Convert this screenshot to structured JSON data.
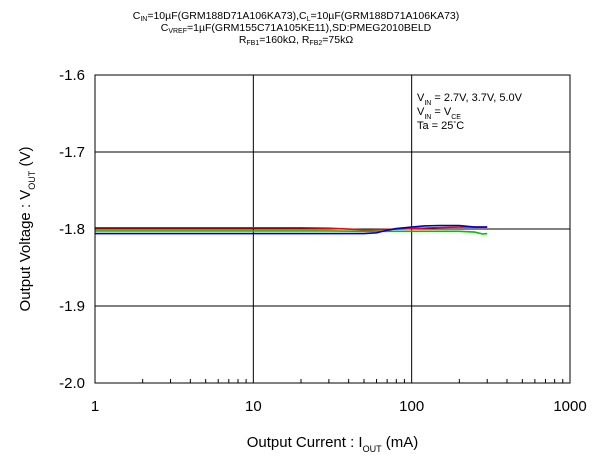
{
  "chart_data": {
    "type": "line",
    "title_lines": [
      [
        [
          "C",
          ""
        ],
        [
          "IN",
          "sub"
        ],
        [
          "=10µF(GRM188D71A106KA73),C",
          ""
        ],
        [
          "L",
          "sub"
        ],
        [
          "=10µF(GRM188D71A106KA73)",
          ""
        ]
      ],
      [
        [
          "C",
          ""
        ],
        [
          "VREF",
          "sub"
        ],
        [
          "=1µF(GRM155C71A105KE11),SD:PMEG2010BELD",
          ""
        ]
      ],
      [
        [
          "R",
          ""
        ],
        [
          "FB1",
          "sub"
        ],
        [
          "=160kΩ,  R",
          ""
        ],
        [
          "FB2",
          "sub"
        ],
        [
          "=75kΩ",
          ""
        ]
      ]
    ],
    "xlabel": [
      [
        "Output Current : I",
        ""
      ],
      [
        "OUT",
        "sub"
      ],
      [
        " (mA)",
        ""
      ]
    ],
    "ylabel": [
      [
        "Output Voltage : V",
        ""
      ],
      [
        "OUT",
        "sub"
      ],
      [
        " (V)",
        ""
      ]
    ],
    "x_scale": "log",
    "xlim": [
      1,
      1000
    ],
    "ylim": [
      -1.6,
      -2.0
    ],
    "x_ticks": [
      1,
      10,
      100,
      1000
    ],
    "x_tick_labels": [
      "1",
      "10",
      "100",
      "1000"
    ],
    "y_ticks": [
      -2.0,
      -1.9,
      -1.8,
      -1.7,
      -1.6
    ],
    "y_tick_labels": [
      "-2.0",
      "-1.9",
      "-1.8",
      "-1.7",
      "-1.6"
    ],
    "grid": true,
    "annotations": [
      [
        [
          "V",
          ""
        ],
        [
          "IN",
          "sub"
        ],
        [
          " = 2.7V,  3.7V,  5.0V",
          ""
        ]
      ],
      [
        [
          "V",
          ""
        ],
        [
          "IN",
          "sub"
        ],
        [
          " = V",
          ""
        ],
        [
          "CE",
          "sub"
        ]
      ],
      [
        [
          "Ta = 25",
          ""
        ],
        [
          "°",
          "sup"
        ],
        [
          "C",
          ""
        ]
      ]
    ],
    "series": [
      {
        "color": "#ff0000",
        "x": [
          1,
          2,
          5,
          10,
          20,
          30,
          50,
          70,
          100,
          150,
          200,
          250,
          300
        ],
        "y": [
          -1.7985,
          -1.7985,
          -1.7985,
          -1.7985,
          -1.7985,
          -1.799,
          -1.801,
          -1.8005,
          -1.7995,
          -1.798,
          -1.7975,
          -1.7975,
          -1.7975
        ]
      },
      {
        "color": "#00c000",
        "x": [
          1,
          2,
          5,
          10,
          20,
          30,
          50,
          70,
          100,
          150,
          200,
          250,
          280,
          300
        ],
        "y": [
          -1.8025,
          -1.8025,
          -1.8025,
          -1.8025,
          -1.8025,
          -1.8025,
          -1.803,
          -1.803,
          -1.803,
          -1.803,
          -1.803,
          -1.804,
          -1.8065,
          -1.806
        ]
      },
      {
        "color": "#0000cc",
        "x": [
          1,
          2,
          5,
          10,
          20,
          30,
          50,
          60,
          70,
          80,
          100,
          120,
          150,
          200,
          250,
          300
        ],
        "y": [
          -1.806,
          -1.806,
          -1.806,
          -1.806,
          -1.806,
          -1.806,
          -1.806,
          -1.805,
          -1.8015,
          -1.7995,
          -1.7975,
          -1.796,
          -1.7955,
          -1.7955,
          -1.7975,
          -1.7975
        ]
      }
    ]
  }
}
